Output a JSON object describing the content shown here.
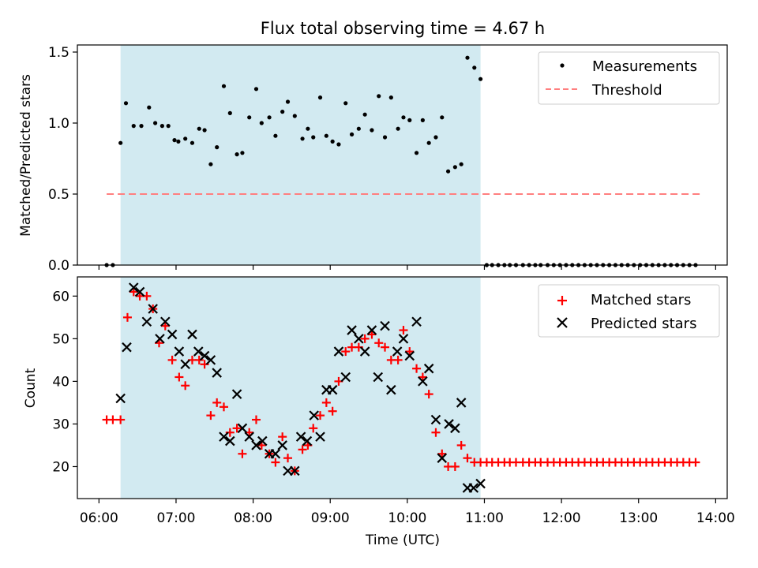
{
  "chart_data": {
    "title": "Flux total observing time = 4.67 h",
    "xlabel": "Time (UTC)",
    "x_ticks": [
      "06:00",
      "07:00",
      "08:00",
      "09:00",
      "10:00",
      "11:00",
      "12:00",
      "13:00",
      "14:00"
    ],
    "x_range_hours": [
      5.72,
      14.15
    ],
    "shaded_interval_hours": [
      6.28,
      10.95
    ],
    "colors": {
      "shade": "#add8e6",
      "measurement": "#000000",
      "threshold": "#ff7f7f",
      "matched": "#ff0000",
      "predicted": "#000000"
    },
    "panels": [
      {
        "type": "scatter",
        "ylabel": "Matched/Predicted stars",
        "ylim": [
          0,
          1.55
        ],
        "y_ticks": [
          "0.0",
          "0.5",
          "1.0",
          "1.5"
        ],
        "legend_position": "upper right",
        "series": [
          {
            "name": "Measurements",
            "marker": "dot",
            "x": [
              6.1,
              6.18,
              6.28,
              6.35,
              6.45,
              6.55,
              6.65,
              6.73,
              6.82,
              6.9,
              6.98,
              7.03,
              7.12,
              7.21,
              7.3,
              7.37,
              7.45,
              7.53,
              7.62,
              7.7,
              7.79,
              7.86,
              7.95,
              8.04,
              8.11,
              8.21,
              8.29,
              8.38,
              8.45,
              8.54,
              8.64,
              8.71,
              8.78,
              8.87,
              8.95,
              9.03,
              9.11,
              9.2,
              9.28,
              9.37,
              9.45,
              9.54,
              9.63,
              9.71,
              9.79,
              9.88,
              9.95,
              10.03,
              10.12,
              10.2,
              10.28,
              10.37,
              10.45,
              10.53,
              10.62,
              10.7,
              10.78,
              10.87,
              10.95,
              11.03,
              11.1,
              11.18,
              11.26,
              11.33,
              11.41,
              11.5,
              11.58,
              11.66,
              11.73,
              11.82,
              11.9,
              11.98,
              12.06,
              12.14,
              12.22,
              12.3,
              12.38,
              12.46,
              12.54,
              12.62,
              12.7,
              12.78,
              12.86,
              12.94,
              13.02,
              13.1,
              13.18,
              13.26,
              13.34,
              13.42,
              13.5,
              13.58,
              13.66,
              13.74
            ],
            "y": [
              0.0,
              0.0,
              0.86,
              1.14,
              0.98,
              0.98,
              1.11,
              1.0,
              0.98,
              0.98,
              0.88,
              0.87,
              0.89,
              0.86,
              0.96,
              0.95,
              0.71,
              0.83,
              1.26,
              1.07,
              0.78,
              0.79,
              1.04,
              1.24,
              1.0,
              1.04,
              0.91,
              1.08,
              1.15,
              1.05,
              0.89,
              0.96,
              0.9,
              1.18,
              0.91,
              0.87,
              0.85,
              1.14,
              0.92,
              0.96,
              1.06,
              0.95,
              1.19,
              0.9,
              1.18,
              0.96,
              1.04,
              1.02,
              0.79,
              1.02,
              0.86,
              0.9,
              1.04,
              0.66,
              0.69,
              0.71,
              1.46,
              1.39,
              1.31,
              0.0,
              0.0,
              0.0,
              0.0,
              0.0,
              0.0,
              0.0,
              0.0,
              0.0,
              0.0,
              0.0,
              0.0,
              0.0,
              0.0,
              0.0,
              0.0,
              0.0,
              0.0,
              0.0,
              0.0,
              0.0,
              0.0,
              0.0,
              0.0,
              0.0,
              0.0,
              0.0,
              0.0,
              0.0,
              0.0,
              0.0,
              0.0,
              0.0,
              0.0,
              0.0
            ]
          },
          {
            "name": "Threshold",
            "style": "dashed",
            "x": [
              6.1,
              13.82
            ],
            "y": [
              0.5,
              0.5
            ]
          }
        ]
      },
      {
        "type": "scatter",
        "ylabel": "Count",
        "ylim": [
          12.5,
          64.5
        ],
        "y_ticks": [
          "20",
          "30",
          "40",
          "50",
          "60"
        ],
        "legend_position": "upper right",
        "series": [
          {
            "name": "Matched stars",
            "marker": "plus",
            "x": [
              6.1,
              6.18,
              6.28,
              6.37,
              6.45,
              6.53,
              6.62,
              6.7,
              6.78,
              6.86,
              6.95,
              7.04,
              7.12,
              7.21,
              7.3,
              7.37,
              7.45,
              7.53,
              7.62,
              7.7,
              7.79,
              7.86,
              7.95,
              8.04,
              8.11,
              8.21,
              8.29,
              8.38,
              8.45,
              8.54,
              8.64,
              8.71,
              8.78,
              8.87,
              8.95,
              9.03,
              9.11,
              9.2,
              9.28,
              9.37,
              9.45,
              9.54,
              9.63,
              9.71,
              9.79,
              9.88,
              9.95,
              10.03,
              10.12,
              10.2,
              10.28,
              10.37,
              10.45,
              10.53,
              10.62,
              10.7,
              10.78,
              10.87,
              10.95,
              11.03,
              11.1,
              11.18,
              11.26,
              11.33,
              11.41,
              11.5,
              11.58,
              11.66,
              11.73,
              11.82,
              11.9,
              11.98,
              12.06,
              12.14,
              12.22,
              12.3,
              12.38,
              12.46,
              12.54,
              12.62,
              12.7,
              12.78,
              12.86,
              12.94,
              13.02,
              13.1,
              13.18,
              13.26,
              13.34,
              13.42,
              13.5,
              13.58,
              13.66,
              13.74
            ],
            "y": [
              31,
              31,
              31,
              55,
              61,
              60,
              60,
              57,
              49,
              53,
              45,
              41,
              39,
              45,
              45,
              44,
              32,
              35,
              34,
              28,
              29,
              23,
              28,
              31,
              25,
              23,
              21,
              27,
              22,
              19,
              24,
              25,
              29,
              32,
              35,
              33,
              40,
              47,
              48,
              48,
              50,
              51,
              49,
              48,
              45,
              45,
              52,
              47,
              43,
              41,
              37,
              28,
              23,
              20,
              20,
              25,
              22,
              21,
              21,
              21,
              21,
              21,
              21,
              21,
              21,
              21,
              21,
              21,
              21,
              21,
              21,
              21,
              21,
              21,
              21,
              21,
              21,
              21,
              21,
              21,
              21,
              21,
              21,
              21,
              21,
              21,
              21,
              21,
              21,
              21,
              21,
              21,
              21,
              21
            ]
          },
          {
            "name": "Predicted stars",
            "marker": "x",
            "x": [
              6.28,
              6.36,
              6.45,
              6.53,
              6.62,
              6.7,
              6.79,
              6.86,
              6.95,
              7.04,
              7.12,
              7.21,
              7.29,
              7.37,
              7.45,
              7.53,
              7.62,
              7.7,
              7.79,
              7.86,
              7.95,
              8.04,
              8.12,
              8.21,
              8.29,
              8.38,
              8.45,
              8.54,
              8.62,
              8.7,
              8.79,
              8.87,
              8.95,
              9.03,
              9.11,
              9.2,
              9.28,
              9.37,
              9.45,
              9.54,
              9.62,
              9.71,
              9.79,
              9.87,
              9.95,
              10.03,
              10.12,
              10.2,
              10.28,
              10.37,
              10.45,
              10.54,
              10.62,
              10.7,
              10.78,
              10.86,
              10.95
            ],
            "y": [
              36,
              48,
              62,
              61,
              54,
              57,
              50,
              54,
              51,
              47,
              44,
              51,
              47,
              46,
              45,
              42,
              27,
              26,
              37,
              29,
              27,
              25,
              26,
              23,
              23,
              25,
              19,
              19,
              27,
              26,
              32,
              27,
              38,
              38,
              47,
              41,
              52,
              50,
              47,
              52,
              41,
              53,
              38,
              47,
              50,
              46,
              54,
              40,
              43,
              31,
              22,
              30,
              29,
              35,
              15,
              15,
              16
            ]
          }
        ]
      }
    ]
  }
}
